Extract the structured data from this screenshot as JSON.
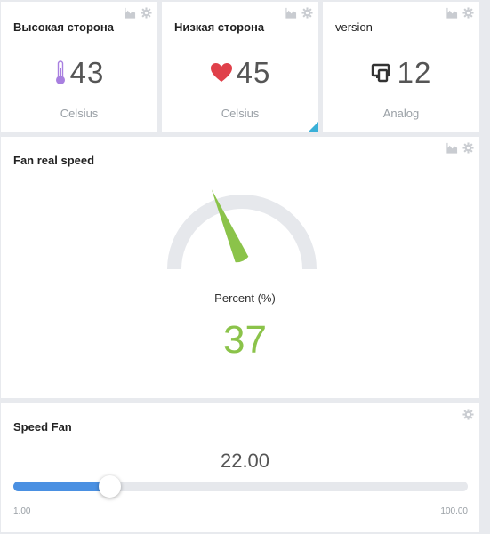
{
  "widgets": {
    "high_side": {
      "title": "Высокая сторона",
      "icon": "thermometer-icon",
      "value": "43",
      "unit": "Celsius",
      "icon_color": "#a87fe0"
    },
    "low_side": {
      "title": "Низкая сторона",
      "icon": "heart-icon",
      "value": "45",
      "unit": "Celsius",
      "icon_color": "#e0404a"
    },
    "version": {
      "title": "version",
      "icon": "devices-icon",
      "value": "12",
      "unit": "Analog"
    }
  },
  "gauge": {
    "title": "Fan real speed",
    "label": "Percent (%)",
    "value": "37",
    "percent": 37,
    "min": 0,
    "max": 100,
    "color": "#8bc34a",
    "track_color": "#e6e8ec"
  },
  "slider": {
    "title": "Speed Fan",
    "value_text": "22.00",
    "value": 22,
    "min": 1,
    "max": 100,
    "min_label": "1.00",
    "max_label": "100.00",
    "fill_color": "#4a90e2"
  },
  "icons": {
    "chart": "chart-icon",
    "settings": "gear-icon"
  }
}
